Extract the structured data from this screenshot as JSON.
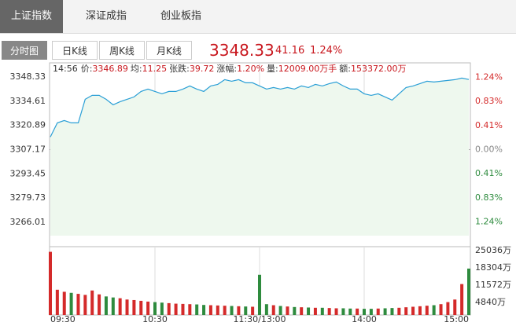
{
  "tabs": [
    "上证指数",
    "深证成指",
    "创业板指"
  ],
  "period_buttons": [
    "分时图",
    "日K线",
    "周K线",
    "月K线"
  ],
  "quote": {
    "price": "3348.33",
    "change": "41.16",
    "percent": "1.24%"
  },
  "info": {
    "time": "14:56",
    "items": [
      {
        "label": "价:",
        "value": "3346.89"
      },
      {
        "label": "均:",
        "value": "11.25"
      },
      {
        "label": "张跌:",
        "value": "39.72"
      },
      {
        "label": "涨幅:",
        "value": "1.20%"
      },
      {
        "label": "量:",
        "value": "12009.00万手"
      },
      {
        "label": "额:",
        "value": "153372.00万"
      }
    ]
  },
  "chart_data": [
    {
      "type": "line",
      "color": "#2a9fd6",
      "fill": "#eef8ee",
      "up_color": "#d42a2a",
      "down_color": "#2e8b3e",
      "flat_color": "#888888",
      "x": [
        0,
        4,
        8,
        12,
        16,
        20,
        24,
        28,
        32,
        36,
        40,
        44,
        48,
        52,
        56,
        60,
        64,
        68,
        72,
        76,
        80,
        84,
        88,
        92,
        96,
        100,
        104,
        108,
        112,
        116,
        120,
        124,
        128,
        132,
        136,
        140,
        144,
        148,
        152,
        156,
        160,
        164,
        168,
        172,
        176,
        180,
        184,
        188,
        192,
        196,
        200,
        204,
        208,
        212,
        216,
        220,
        224,
        228,
        232,
        236,
        240
      ],
      "values": [
        3314.3,
        3322.32,
        3323.65,
        3322.32,
        3322.32,
        3335.68,
        3337.91,
        3337.91,
        3335.68,
        3332.56,
        3334.35,
        3335.68,
        3337.02,
        3340.14,
        3341.47,
        3340.14,
        3338.8,
        3340.14,
        3340.14,
        3341.47,
        3343.26,
        3341.47,
        3340.14,
        3343.26,
        3344.15,
        3346.82,
        3345.93,
        3346.82,
        3345.04,
        3345.04,
        3343.26,
        3341.47,
        3342.37,
        3341.47,
        3342.37,
        3341.47,
        3343.26,
        3342.37,
        3344.15,
        3343.26,
        3344.59,
        3345.48,
        3343.26,
        3341.47,
        3341.47,
        3338.8,
        3337.91,
        3338.8,
        3337.02,
        3335.24,
        3338.8,
        3342.37,
        3343.26,
        3344.59,
        3345.93,
        3345.48,
        3345.93,
        3346.37,
        3346.82,
        3347.71,
        3346.89
      ],
      "xlim": [
        0,
        240
      ],
      "ylim": [
        3258.4,
        3356.35
      ],
      "yticks": [
        3348.33,
        3334.61,
        3320.89,
        3307.17,
        3293.45,
        3279.73,
        3266.01
      ],
      "y2lim": [
        -1.475,
        1.487
      ],
      "y2ticks": [
        {
          "value": 1.24,
          "label": "1.24%"
        },
        {
          "value": 0.83,
          "label": "0.83%"
        },
        {
          "value": 0.41,
          "label": "0.41%"
        },
        {
          "value": 0,
          "label": "0.00%"
        },
        {
          "value": -0.41,
          "label": "0.41%"
        },
        {
          "value": -0.83,
          "label": "0.83%"
        },
        {
          "value": -1.24,
          "label": "1.24%"
        }
      ]
    },
    {
      "type": "bar",
      "up_color": "#d42a2a",
      "down_color": "#2e8b3e",
      "x": [
        0,
        4,
        8,
        12,
        16,
        20,
        24,
        28,
        32,
        36,
        40,
        44,
        48,
        52,
        56,
        60,
        64,
        68,
        72,
        76,
        80,
        84,
        88,
        92,
        96,
        100,
        104,
        108,
        112,
        116,
        120,
        124,
        128,
        132,
        136,
        140,
        144,
        148,
        152,
        156,
        160,
        164,
        168,
        172,
        176,
        180,
        184,
        188,
        192,
        196,
        200,
        204,
        208,
        212,
        216,
        220,
        224,
        228,
        232,
        236,
        240
      ],
      "values": [
        24500,
        9800,
        9000,
        8600,
        8200,
        7800,
        9500,
        8000,
        7200,
        6800,
        6500,
        6000,
        5800,
        5500,
        5200,
        5000,
        4800,
        4600,
        4400,
        4300,
        4200,
        4100,
        3900,
        3800,
        3700,
        3600,
        3500,
        3400,
        3300,
        3200,
        15600,
        4200,
        3800,
        3500,
        3300,
        3100,
        3000,
        2900,
        2800,
        2800,
        2700,
        2600,
        2600,
        2500,
        2500,
        2400,
        2400,
        2500,
        2600,
        2700,
        2800,
        3000,
        3200,
        3400,
        3600,
        3800,
        4200,
        5000,
        6000,
        12000,
        18000
      ],
      "xlim": [
        0,
        240
      ],
      "ylim": [
        0,
        26500
      ],
      "yticks": [
        {
          "value": 25036,
          "label": "25036万"
        },
        {
          "value": 18304,
          "label": "18304万"
        },
        {
          "value": 11572,
          "label": "11572万"
        },
        {
          "value": 4840,
          "label": "4840万"
        }
      ],
      "xticks": [
        {
          "value": 0,
          "label": "09:30"
        },
        {
          "value": 60,
          "label": "10:30"
        },
        {
          "value": 120,
          "label": "11:30/13:00"
        },
        {
          "value": 180,
          "label": "14:00"
        },
        {
          "value": 240,
          "label": "15:00"
        }
      ]
    }
  ]
}
